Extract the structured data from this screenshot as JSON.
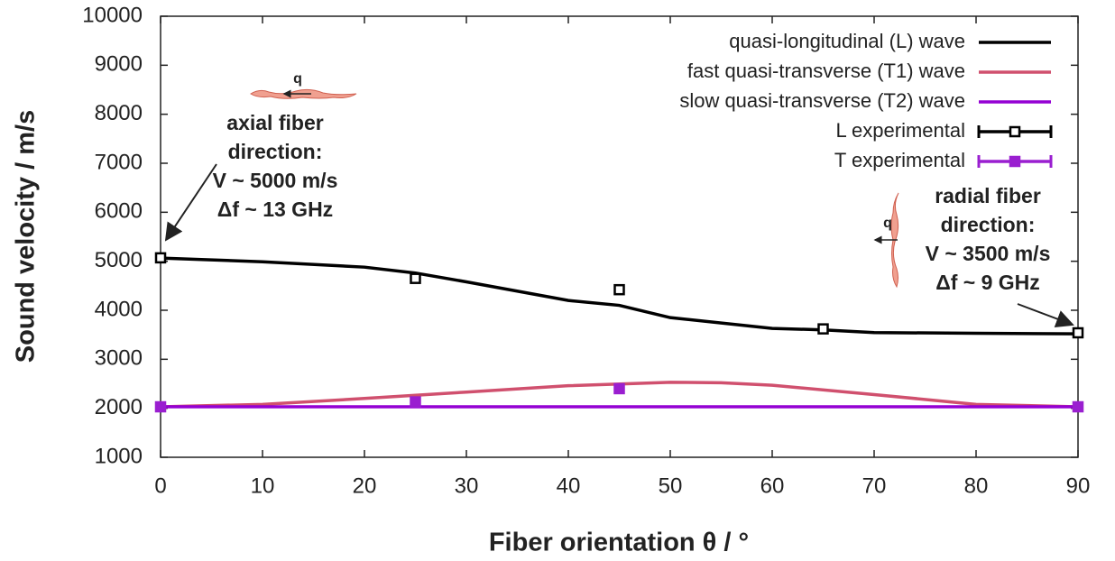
{
  "chart_data": {
    "type": "line",
    "xlabel": "Fiber orientation θ / °",
    "ylabel": "Sound velocity / m/s",
    "xlim": [
      0,
      90
    ],
    "ylim": [
      1000,
      10000
    ],
    "xticks": [
      0,
      10,
      20,
      30,
      40,
      50,
      60,
      70,
      80,
      90
    ],
    "yticks": [
      1000,
      2000,
      3000,
      4000,
      5000,
      6000,
      7000,
      8000,
      9000,
      10000
    ],
    "legend": "upper right",
    "series": [
      {
        "name": "quasi-longitudinal (L) wave",
        "color": "#000000",
        "style": "line",
        "x": [
          0,
          10,
          20,
          25,
          30,
          40,
          45,
          50,
          60,
          65,
          70,
          80,
          90
        ],
        "values": [
          5065,
          4990,
          4880,
          4760,
          4580,
          4200,
          4100,
          3850,
          3630,
          3600,
          3545,
          3530,
          3520
        ]
      },
      {
        "name": "fast quasi-transverse (T1) wave",
        "color": "#d0506e",
        "style": "line",
        "x": [
          0,
          10,
          20,
          30,
          40,
          50,
          55,
          60,
          70,
          80,
          90
        ],
        "values": [
          2030,
          2080,
          2200,
          2330,
          2460,
          2530,
          2520,
          2470,
          2280,
          2080,
          2030
        ]
      },
      {
        "name": "slow quasi-transverse (T2) wave",
        "color": "#9400d3",
        "style": "line",
        "x": [
          0,
          90
        ],
        "values": [
          2030,
          2030
        ]
      },
      {
        "name": "L experimental",
        "color": "#000000",
        "style": "points",
        "x": [
          0,
          25,
          45,
          65,
          90
        ],
        "values": [
          5070,
          4650,
          4420,
          3620,
          3540
        ]
      },
      {
        "name": "T experimental",
        "color": "#9a1fd0",
        "style": "points",
        "x": [
          0,
          25,
          45,
          90
        ],
        "values": [
          2030,
          2130,
          2400,
          2030
        ]
      }
    ],
    "annotations": [
      {
        "lines": [
          "q"
        ]
      },
      {
        "lines": [
          "axial fiber",
          "direction:",
          "V ~ 5000 m/s",
          "Δf ~ 13 GHz"
        ]
      },
      {
        "lines": [
          "q"
        ]
      },
      {
        "lines": [
          "radial fiber",
          "direction:",
          "V ~ 3500 m/s",
          "Δf ~ 9 GHz"
        ]
      }
    ]
  }
}
